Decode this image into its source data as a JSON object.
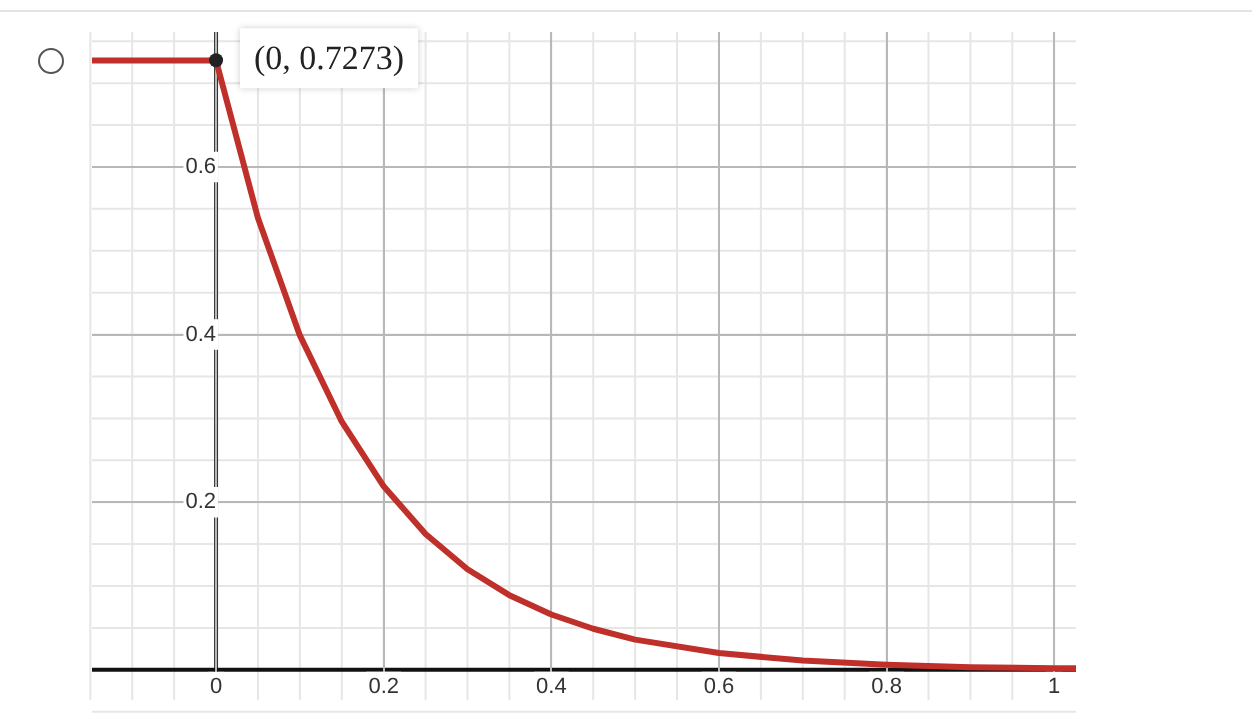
{
  "chart_data": {
    "type": "line",
    "x": [
      -0.148,
      -0.1,
      -0.05,
      0,
      0.05,
      0.1,
      0.15,
      0.2,
      0.25,
      0.3,
      0.35,
      0.4,
      0.45,
      0.5,
      0.6,
      0.7,
      0.8,
      0.9,
      1.0,
      1.026
    ],
    "series": [
      {
        "color": "#c0302b",
        "values": [
          0.727,
          0.727,
          0.727,
          0.727,
          0.539,
          0.399,
          0.296,
          0.219,
          0.162,
          0.12,
          0.089,
          0.066,
          0.049,
          0.036,
          0.02,
          0.011,
          0.006,
          0.003,
          0.002,
          0.002
        ]
      }
    ],
    "xlim": [
      -0.148,
      1.026
    ],
    "ylim": [
      -0.036,
      0.761
    ],
    "xticks": [
      0,
      0.2,
      0.4,
      0.6,
      0.8,
      1
    ],
    "yticks": [
      0.2,
      0.4,
      0.6
    ],
    "grid": true,
    "legend": false,
    "marker": "none",
    "line_style": "solid",
    "annotations": [
      {
        "text": "(0, 0.7273)",
        "x": 0,
        "y": 0.7273
      }
    ]
  }
}
